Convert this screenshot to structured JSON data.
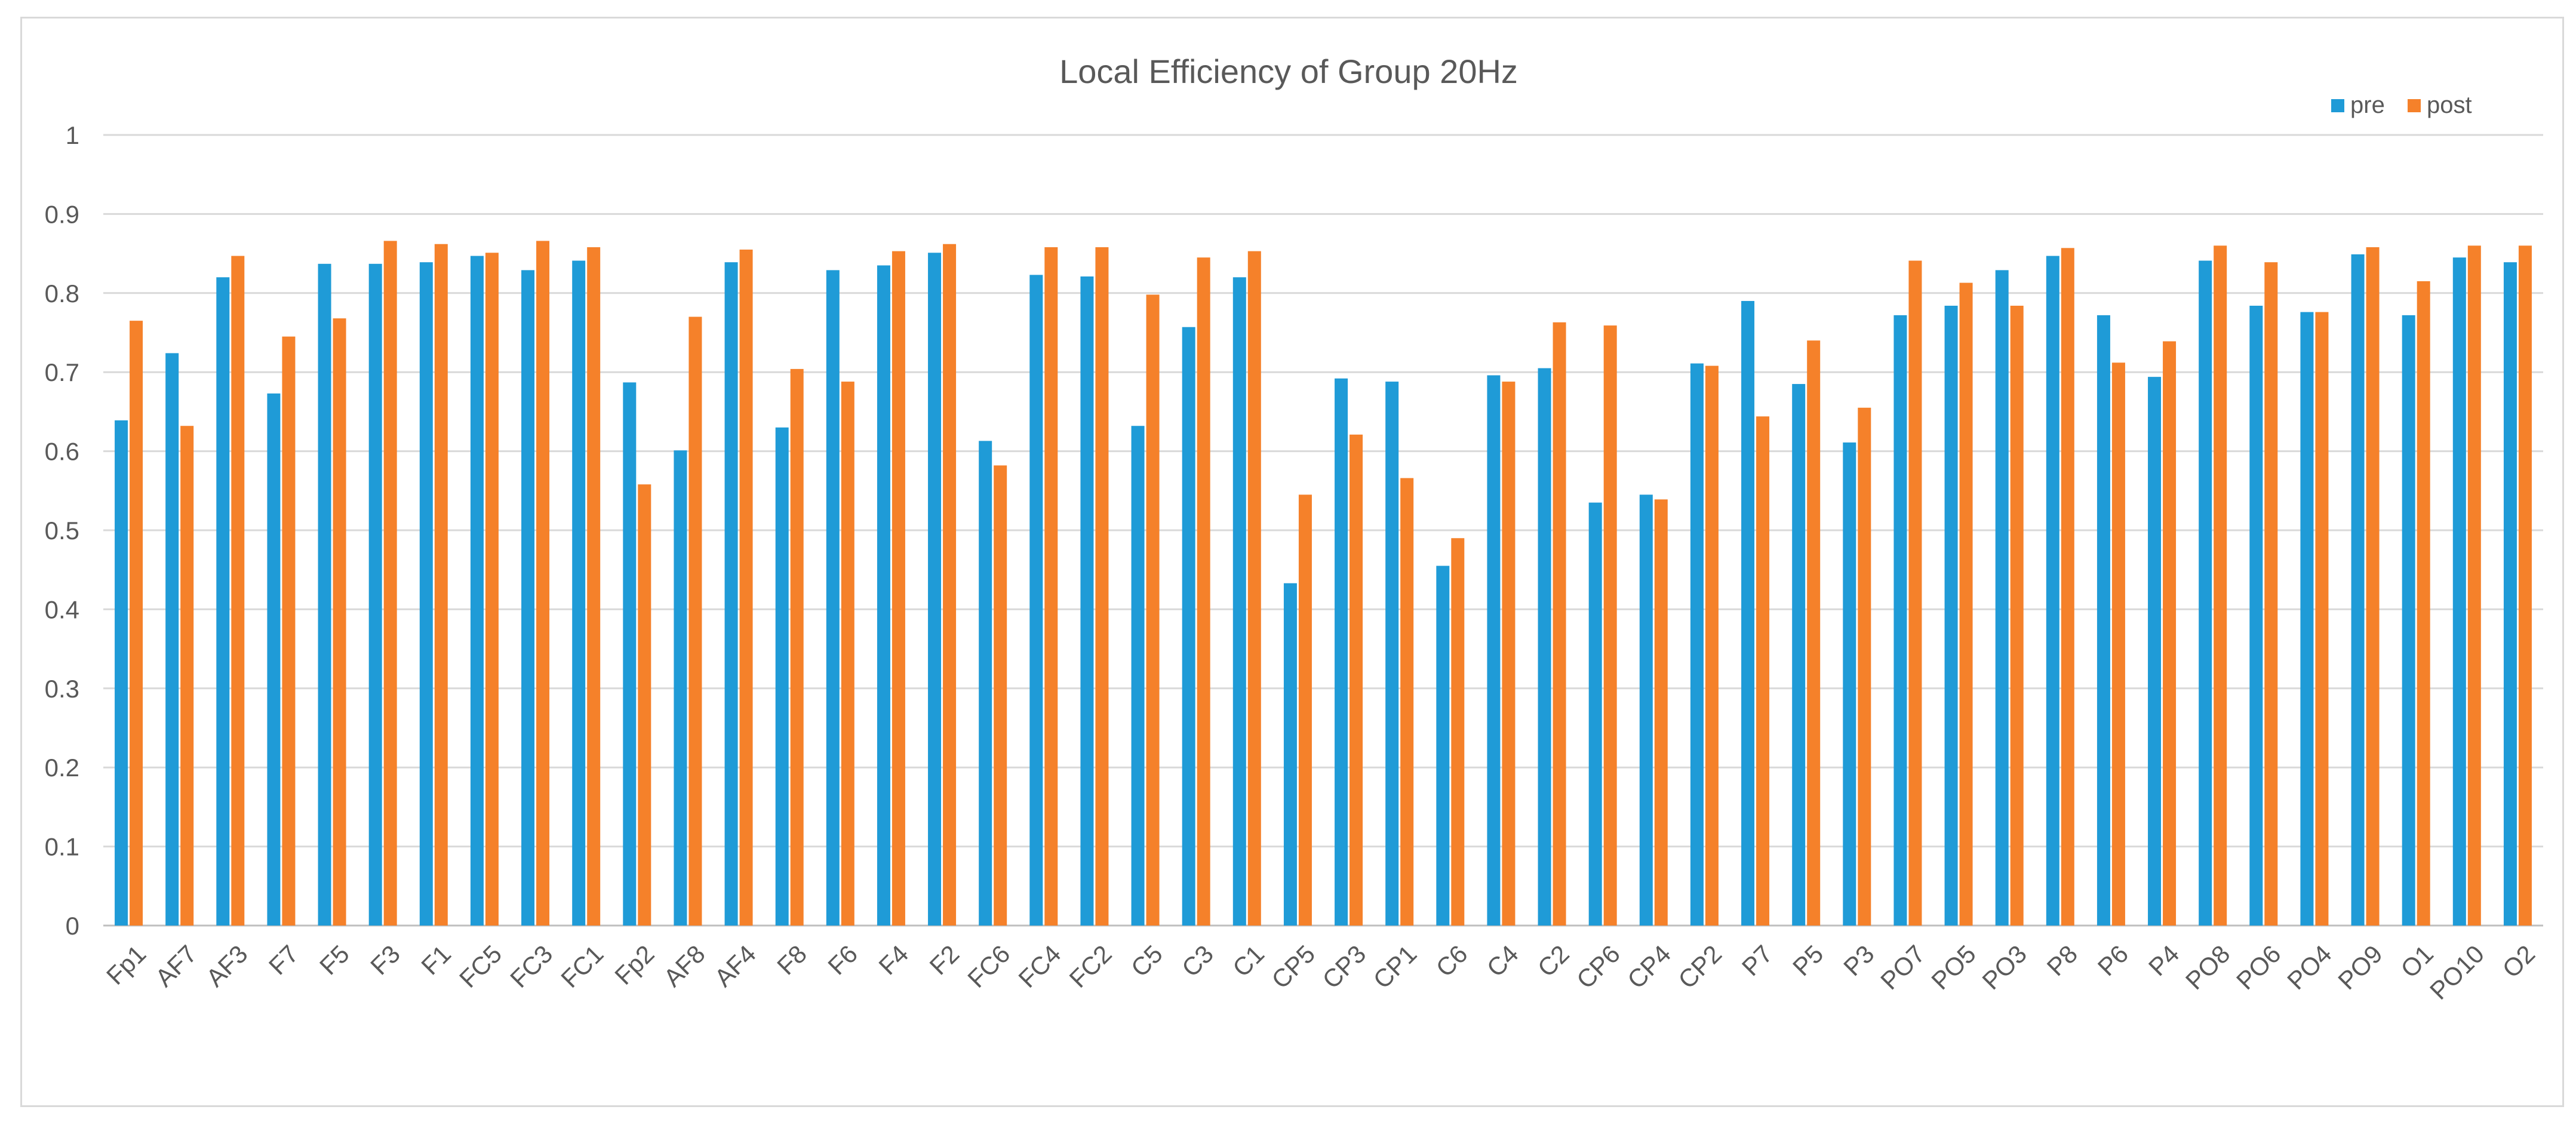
{
  "chart_data": {
    "type": "bar",
    "title": "Local Efficiency of Group 20Hz",
    "xlabel": "",
    "ylabel": "",
    "ylim": [
      0,
      1
    ],
    "yticks": [
      "0",
      "0.1",
      "0.2",
      "0.3",
      "0.4",
      "0.5",
      "0.6",
      "0.7",
      "0.8",
      "0.9",
      "1"
    ],
    "grid": true,
    "legend_position": "top-right",
    "categories": [
      "Fp1",
      "AF7",
      "AF3",
      "F7",
      "F5",
      "F3",
      "F1",
      "FC5",
      "FC3",
      "FC1",
      "Fp2",
      "AF8",
      "AF4",
      "F8",
      "F6",
      "F4",
      "F2",
      "FC6",
      "FC4",
      "FC2",
      "C5",
      "C3",
      "C1",
      "CP5",
      "CP3",
      "CP1",
      "C6",
      "C4",
      "C2",
      "CP6",
      "CP4",
      "CP2",
      "P7",
      "P5",
      "P3",
      "PO7",
      "PO5",
      "PO3",
      "P8",
      "P6",
      "P4",
      "PO8",
      "PO6",
      "PO4",
      "PO9",
      "O1",
      "PO10",
      "O2"
    ],
    "series": [
      {
        "name": "pre",
        "color": "#1f9bd7",
        "values": [
          0.639,
          0.724,
          0.82,
          0.673,
          0.837,
          0.837,
          0.839,
          0.847,
          0.829,
          0.841,
          0.687,
          0.601,
          0.839,
          0.63,
          0.829,
          0.835,
          0.851,
          0.613,
          0.823,
          0.821,
          0.632,
          0.757,
          0.82,
          0.433,
          0.692,
          0.688,
          0.455,
          0.696,
          0.705,
          0.535,
          0.545,
          0.711,
          0.79,
          0.685,
          0.611,
          0.772,
          0.784,
          0.829,
          0.847,
          0.772,
          0.694,
          0.841,
          0.784,
          0.776,
          0.849,
          0.772,
          0.845,
          0.839
        ]
      },
      {
        "name": "post",
        "color": "#f5812a",
        "values": [
          0.765,
          0.632,
          0.847,
          0.745,
          0.768,
          0.866,
          0.862,
          0.851,
          0.866,
          0.858,
          0.558,
          0.77,
          0.855,
          0.704,
          0.688,
          0.853,
          0.862,
          0.582,
          0.858,
          0.858,
          0.798,
          0.845,
          0.853,
          0.545,
          0.621,
          0.566,
          0.49,
          0.688,
          0.763,
          0.759,
          0.539,
          0.708,
          0.644,
          0.74,
          0.655,
          0.841,
          0.813,
          0.784,
          0.857,
          0.712,
          0.739,
          0.86,
          0.839,
          0.776,
          0.858,
          0.815,
          0.86,
          0.86
        ]
      }
    ]
  }
}
